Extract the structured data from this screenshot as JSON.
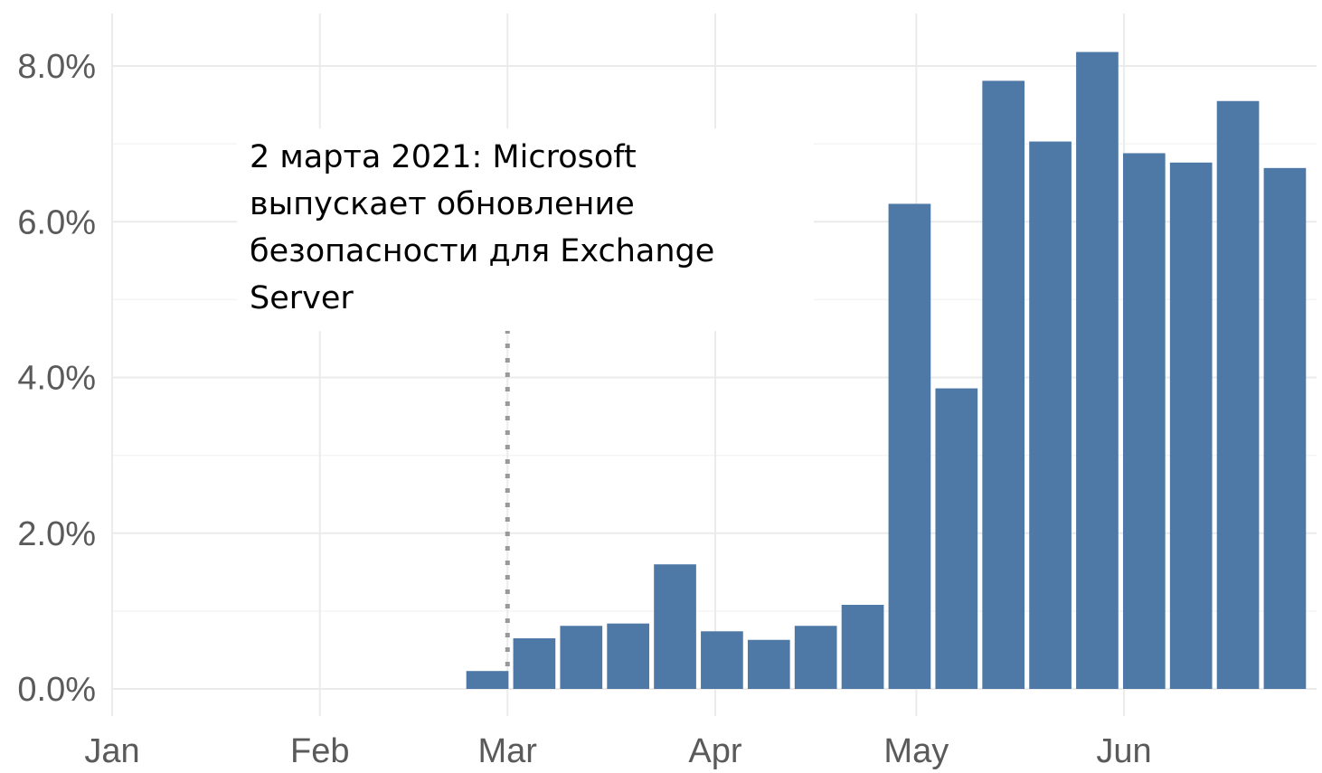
{
  "chart_data": {
    "type": "bar",
    "x_axis_type": "date",
    "bar_width_days": 6.3,
    "x_ticks": [
      {
        "label": "Jan",
        "date": "2021-01-01"
      },
      {
        "label": "Feb",
        "date": "2021-02-01"
      },
      {
        "label": "Mar",
        "date": "2021-03-01"
      },
      {
        "label": "Apr",
        "date": "2021-04-01"
      },
      {
        "label": "May",
        "date": "2021-05-01"
      },
      {
        "label": "Jun",
        "date": "2021-06-01"
      }
    ],
    "y_ticks": [
      {
        "label": "0.0%",
        "value": 0
      },
      {
        "label": "2.0%",
        "value": 2
      },
      {
        "label": "4.0%",
        "value": 4
      },
      {
        "label": "6.0%",
        "value": 6
      },
      {
        "label": "8.0%",
        "value": 8
      }
    ],
    "ylim": [
      0,
      8.6
    ],
    "xlim": [
      "2021-01-01",
      "2021-06-30"
    ],
    "grid": true,
    "bar_color": "#4e79a7",
    "grid_color": "#ebebeb",
    "marker_line_color": "#999999",
    "bars": [
      {
        "date": "2021-02-26",
        "value": 0.23
      },
      {
        "date": "2021-03-05",
        "value": 0.65
      },
      {
        "date": "2021-03-12",
        "value": 0.81
      },
      {
        "date": "2021-03-19",
        "value": 0.84
      },
      {
        "date": "2021-03-26",
        "value": 1.6
      },
      {
        "date": "2021-04-02",
        "value": 0.74
      },
      {
        "date": "2021-04-09",
        "value": 0.63
      },
      {
        "date": "2021-04-16",
        "value": 0.81
      },
      {
        "date": "2021-04-23",
        "value": 1.08
      },
      {
        "date": "2021-04-30",
        "value": 6.23
      },
      {
        "date": "2021-05-07",
        "value": 3.86
      },
      {
        "date": "2021-05-14",
        "value": 7.81
      },
      {
        "date": "2021-05-21",
        "value": 7.03
      },
      {
        "date": "2021-05-28",
        "value": 8.18
      },
      {
        "date": "2021-06-04",
        "value": 6.88
      },
      {
        "date": "2021-06-11",
        "value": 6.76
      },
      {
        "date": "2021-06-18",
        "value": 7.55
      },
      {
        "date": "2021-06-25",
        "value": 6.69
      }
    ],
    "marker_date": "2021-03-01",
    "annotation": "2 марта 2021: Microsoft выпускает обновление безопасности для Exchange Server"
  }
}
